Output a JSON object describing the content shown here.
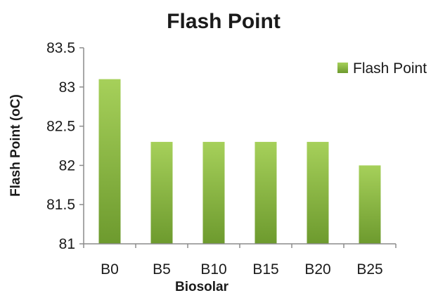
{
  "chart_data": {
    "type": "bar",
    "title": "Flash Point",
    "xlabel": "Biosolar",
    "ylabel": "Flash Point (oC)",
    "categories": [
      "B0",
      "B5",
      "B10",
      "B15",
      "B20",
      "B25"
    ],
    "series": [
      {
        "name": "Flash Point",
        "values": [
          83.1,
          82.3,
          82.3,
          82.3,
          82.3,
          82.0
        ]
      }
    ],
    "ylim": [
      81,
      83.5
    ],
    "yticks": [
      "81",
      "81.5",
      "82",
      "82.5",
      "83",
      "83.5"
    ],
    "ytick_values": [
      81,
      81.5,
      82,
      82.5,
      83,
      83.5
    ],
    "grid": false,
    "legend_position": "top-right",
    "colors": {
      "bar_light": "#a6d05a",
      "bar_dark": "#6d9a2e",
      "axis": "#8c8c8c"
    }
  }
}
